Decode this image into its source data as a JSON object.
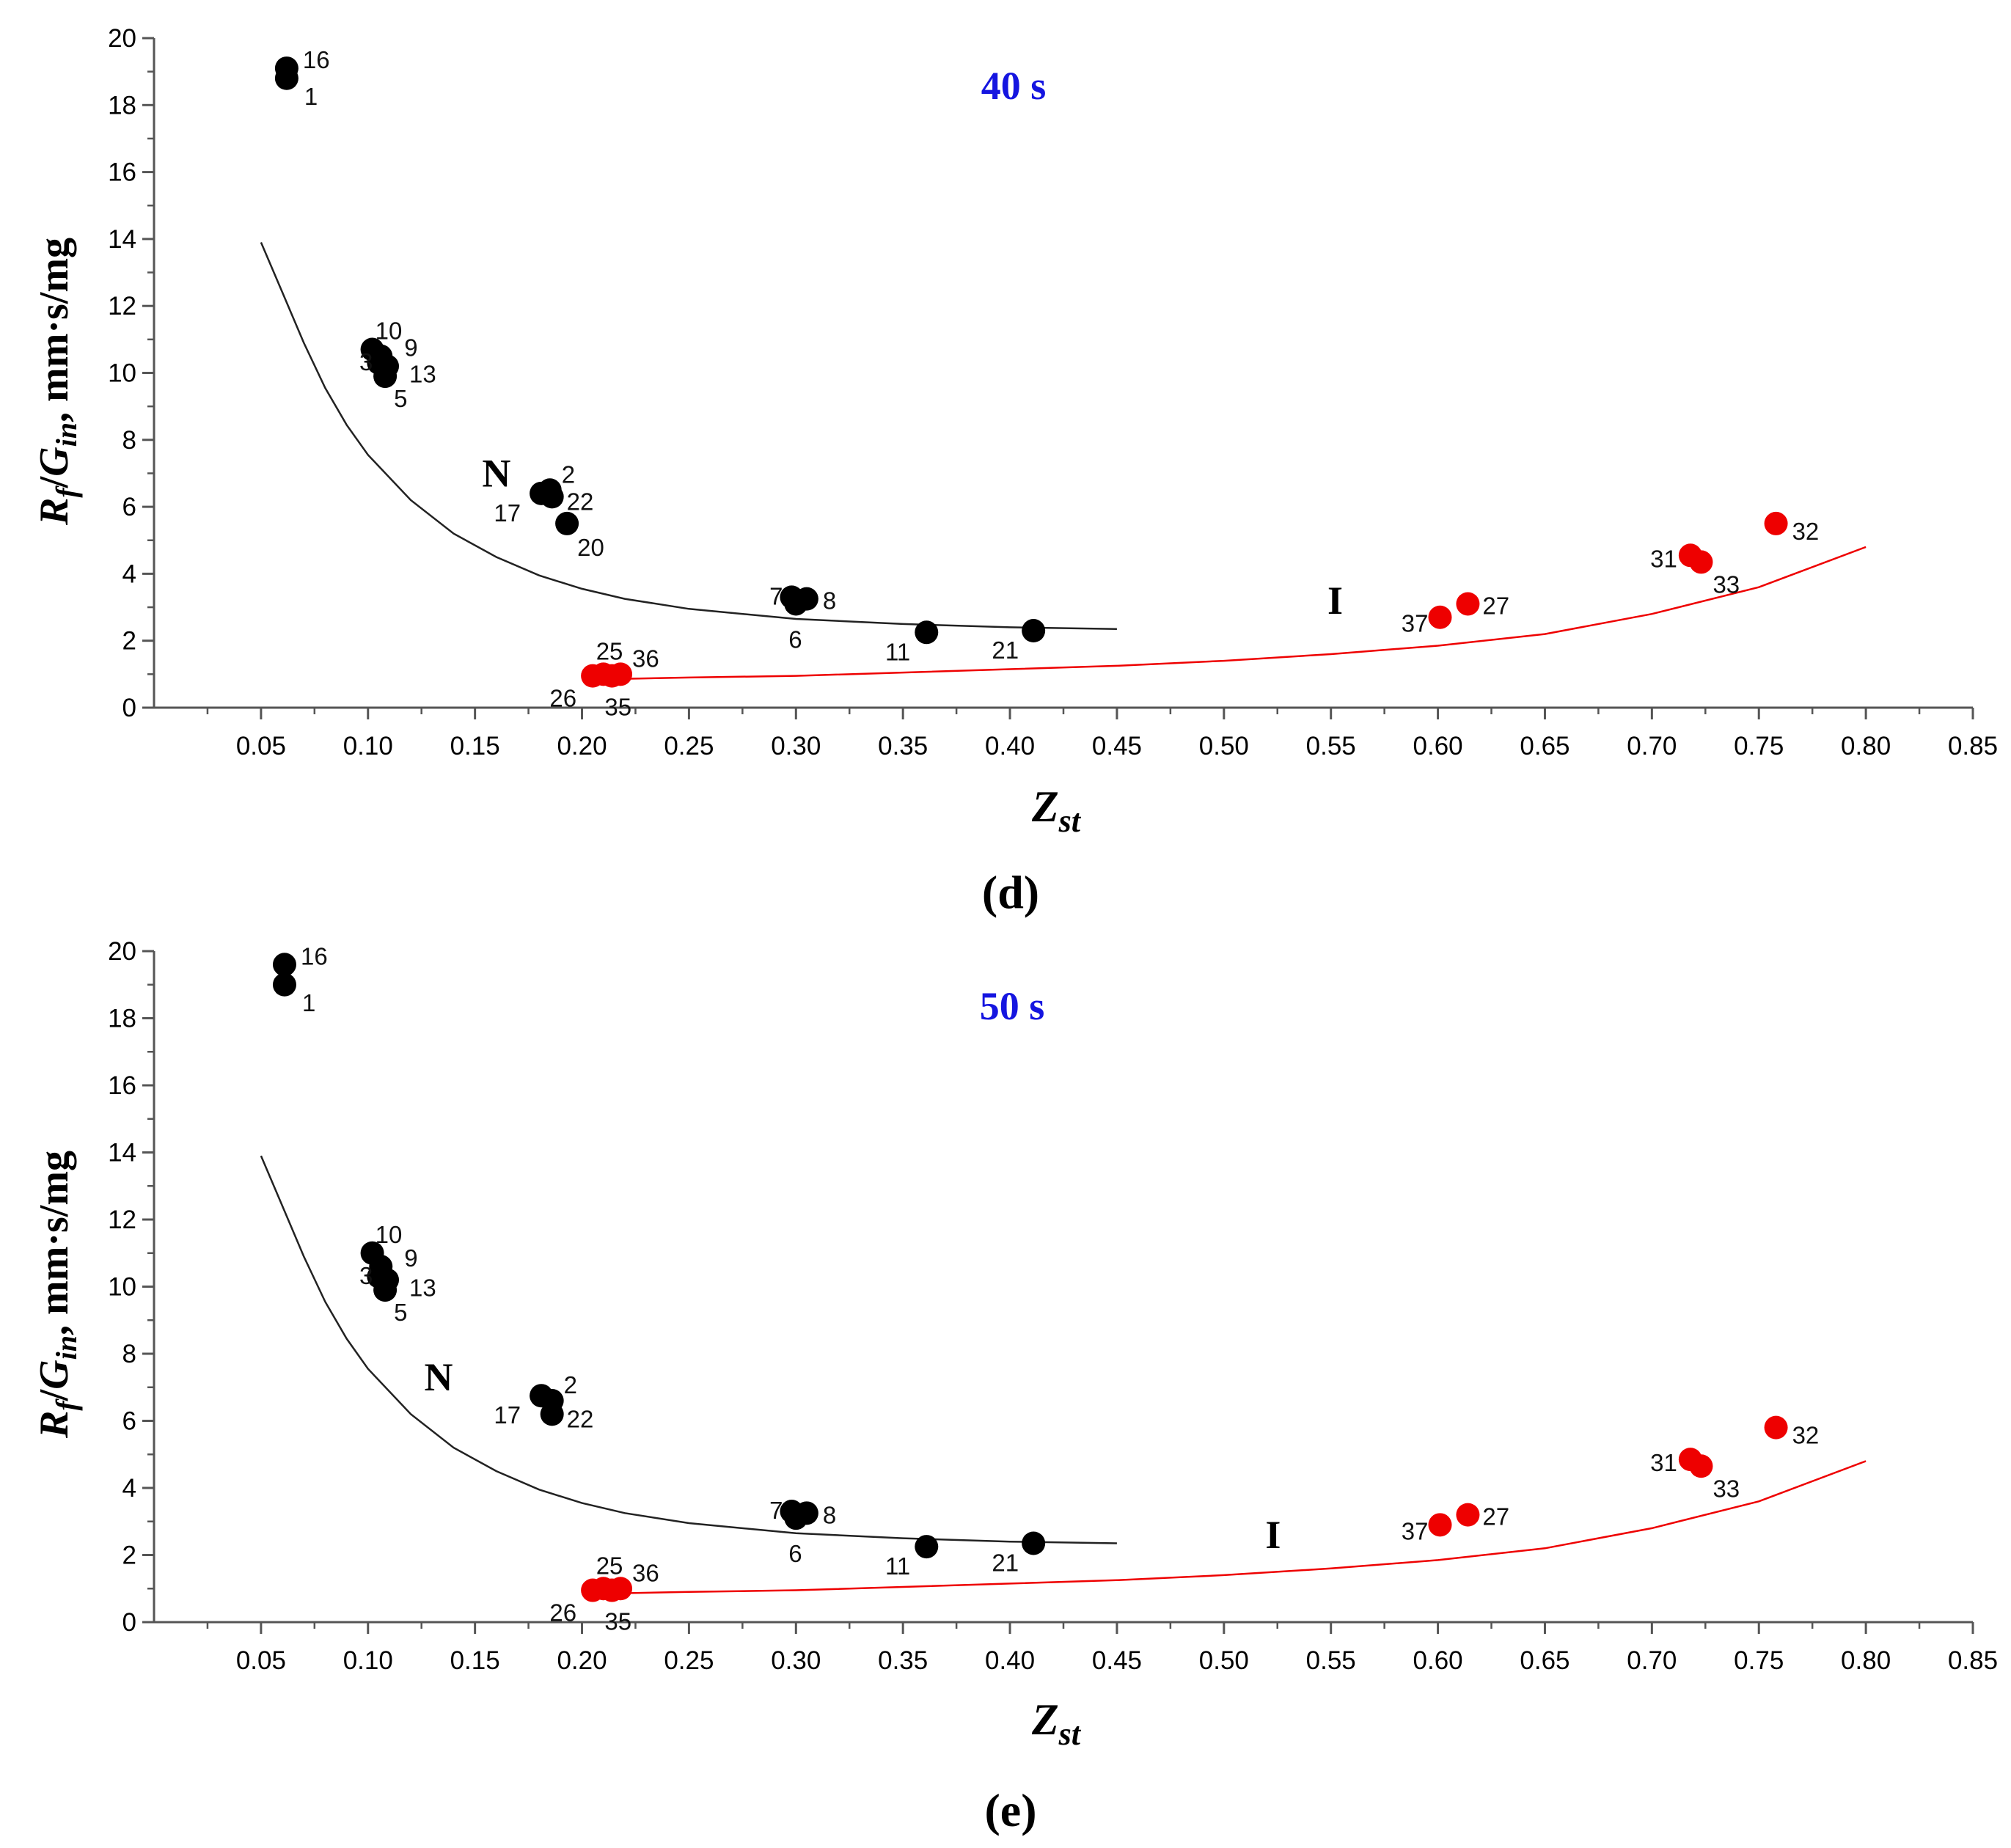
{
  "chart_data": [
    {
      "type": "scatter",
      "panel_label": "(d)",
      "time_label": "40 s",
      "xlabel_main": "Z",
      "xlabel_sub": "st",
      "ylabel_sym": "R",
      "ylabel_sym_sub": "f",
      "ylabel_sym2": "G",
      "ylabel_sym2_sub": "in",
      "ylabel_unit": ", mm·s/mg",
      "xlim": [
        0,
        0.85
      ],
      "ylim": [
        0,
        20
      ],
      "x_ticks": [
        "0.05",
        "0.10",
        "0.15",
        "0.20",
        "0.25",
        "0.30",
        "0.35",
        "0.40",
        "0.45",
        "0.50",
        "0.55",
        "0.60",
        "0.65",
        "0.70",
        "0.75",
        "0.80",
        "0.85"
      ],
      "y_ticks": [
        "0",
        "2",
        "4",
        "6",
        "8",
        "10",
        "12",
        "14",
        "16",
        "18",
        "20"
      ],
      "regions": [
        {
          "label": "N",
          "x": 0.16,
          "y": 7.0
        },
        {
          "label": "I",
          "x": 0.552,
          "y": 3.2
        }
      ],
      "series": [
        {
          "color": "#000000",
          "points": [
            {
              "label": "16",
              "x": 0.062,
              "y": 19.1
            },
            {
              "label": "1",
              "x": 0.062,
              "y": 18.8
            },
            {
              "label": "10",
              "x": 0.102,
              "y": 10.7
            },
            {
              "label": "9",
              "x": 0.106,
              "y": 10.5
            },
            {
              "label": "3",
              "x": 0.105,
              "y": 10.3
            },
            {
              "label": "13",
              "x": 0.109,
              "y": 10.2
            },
            {
              "label": "5",
              "x": 0.108,
              "y": 9.9
            },
            {
              "label": "2",
              "x": 0.185,
              "y": 6.5
            },
            {
              "label": "22",
              "x": 0.186,
              "y": 6.3
            },
            {
              "label": "17",
              "x": 0.181,
              "y": 6.4
            },
            {
              "label": "20",
              "x": 0.193,
              "y": 5.5
            },
            {
              "label": "7",
              "x": 0.298,
              "y": 3.3
            },
            {
              "label": "8",
              "x": 0.305,
              "y": 3.25
            },
            {
              "label": "6",
              "x": 0.3,
              "y": 3.1
            },
            {
              "label": "11",
              "x": 0.361,
              "y": 2.25
            },
            {
              "label": "21",
              "x": 0.411,
              "y": 2.3
            }
          ]
        },
        {
          "color": "#ee0000",
          "points": [
            {
              "label": "25",
              "x": 0.21,
              "y": 1.0
            },
            {
              "label": "36",
              "x": 0.218,
              "y": 1.0
            },
            {
              "label": "26",
              "x": 0.205,
              "y": 0.95
            },
            {
              "label": "35",
              "x": 0.214,
              "y": 0.95
            },
            {
              "label": "37",
              "x": 0.601,
              "y": 2.7
            },
            {
              "label": "27",
              "x": 0.614,
              "y": 3.1
            },
            {
              "label": "31",
              "x": 0.718,
              "y": 4.55
            },
            {
              "label": "33",
              "x": 0.723,
              "y": 4.35
            },
            {
              "label": "32",
              "x": 0.758,
              "y": 5.5
            }
          ]
        }
      ],
      "trend_lines": [
        {
          "color": "#222222",
          "points": [
            [
              0.05,
              13.9
            ],
            [
              0.06,
              12.4
            ],
            [
              0.07,
              10.9
            ],
            [
              0.08,
              9.55
            ],
            [
              0.09,
              8.45
            ],
            [
              0.1,
              7.55
            ],
            [
              0.12,
              6.2
            ],
            [
              0.14,
              5.2
            ],
            [
              0.16,
              4.5
            ],
            [
              0.18,
              3.95
            ],
            [
              0.2,
              3.55
            ],
            [
              0.22,
              3.25
            ],
            [
              0.25,
              2.95
            ],
            [
              0.3,
              2.65
            ],
            [
              0.35,
              2.5
            ],
            [
              0.4,
              2.4
            ],
            [
              0.45,
              2.35
            ]
          ]
        },
        {
          "color": "#ee0000",
          "points": [
            [
              0.21,
              0.85
            ],
            [
              0.25,
              0.9
            ],
            [
              0.3,
              0.95
            ],
            [
              0.35,
              1.05
            ],
            [
              0.4,
              1.15
            ],
            [
              0.45,
              1.25
            ],
            [
              0.5,
              1.4
            ],
            [
              0.55,
              1.6
            ],
            [
              0.6,
              1.85
            ],
            [
              0.65,
              2.2
            ],
            [
              0.7,
              2.8
            ],
            [
              0.75,
              3.6
            ],
            [
              0.8,
              4.8
            ]
          ]
        }
      ]
    },
    {
      "type": "scatter",
      "panel_label": "(e)",
      "time_label": "50 s",
      "xlabel_main": "Z",
      "xlabel_sub": "st",
      "ylabel_sym": "R",
      "ylabel_sym_sub": "f",
      "ylabel_sym2": "G",
      "ylabel_sym2_sub": "in",
      "ylabel_unit": ", mm·s/mg",
      "xlim": [
        0,
        0.85
      ],
      "ylim": [
        0,
        20
      ],
      "x_ticks": [
        "0.05",
        "0.10",
        "0.15",
        "0.20",
        "0.25",
        "0.30",
        "0.35",
        "0.40",
        "0.45",
        "0.50",
        "0.55",
        "0.60",
        "0.65",
        "0.70",
        "0.75",
        "0.80",
        "0.85"
      ],
      "y_ticks": [
        "0",
        "2",
        "4",
        "6",
        "8",
        "10",
        "12",
        "14",
        "16",
        "18",
        "20"
      ],
      "regions": [
        {
          "label": "N",
          "x": 0.133,
          "y": 7.3
        },
        {
          "label": "I",
          "x": 0.523,
          "y": 2.6
        }
      ],
      "series": [
        {
          "color": "#000000",
          "points": [
            {
              "label": "16",
              "x": 0.061,
              "y": 19.6
            },
            {
              "label": "1",
              "x": 0.061,
              "y": 19.0
            },
            {
              "label": "10",
              "x": 0.102,
              "y": 11.0
            },
            {
              "label": "9",
              "x": 0.106,
              "y": 10.6
            },
            {
              "label": "3",
              "x": 0.105,
              "y": 10.3
            },
            {
              "label": "13",
              "x": 0.109,
              "y": 10.2
            },
            {
              "label": "5",
              "x": 0.108,
              "y": 9.9
            },
            {
              "label": "17",
              "x": 0.181,
              "y": 6.75
            },
            {
              "label": "2",
              "x": 0.186,
              "y": 6.6
            },
            {
              "label": "22",
              "x": 0.186,
              "y": 6.2
            },
            {
              "label": "7",
              "x": 0.298,
              "y": 3.3
            },
            {
              "label": "8",
              "x": 0.305,
              "y": 3.25
            },
            {
              "label": "6",
              "x": 0.3,
              "y": 3.1
            },
            {
              "label": "11",
              "x": 0.361,
              "y": 2.25
            },
            {
              "label": "21",
              "x": 0.411,
              "y": 2.35
            }
          ]
        },
        {
          "color": "#ee0000",
          "points": [
            {
              "label": "25",
              "x": 0.21,
              "y": 1.0
            },
            {
              "label": "36",
              "x": 0.218,
              "y": 1.0
            },
            {
              "label": "26",
              "x": 0.205,
              "y": 0.95
            },
            {
              "label": "35",
              "x": 0.214,
              "y": 0.95
            },
            {
              "label": "37",
              "x": 0.601,
              "y": 2.9
            },
            {
              "label": "27",
              "x": 0.614,
              "y": 3.2
            },
            {
              "label": "31",
              "x": 0.718,
              "y": 4.85
            },
            {
              "label": "33",
              "x": 0.723,
              "y": 4.65
            },
            {
              "label": "32",
              "x": 0.758,
              "y": 5.8
            }
          ]
        }
      ],
      "trend_lines": [
        {
          "color": "#222222",
          "points": [
            [
              0.05,
              13.9
            ],
            [
              0.06,
              12.4
            ],
            [
              0.07,
              10.9
            ],
            [
              0.08,
              9.55
            ],
            [
              0.09,
              8.45
            ],
            [
              0.1,
              7.55
            ],
            [
              0.12,
              6.2
            ],
            [
              0.14,
              5.2
            ],
            [
              0.16,
              4.5
            ],
            [
              0.18,
              3.95
            ],
            [
              0.2,
              3.55
            ],
            [
              0.22,
              3.25
            ],
            [
              0.25,
              2.95
            ],
            [
              0.3,
              2.65
            ],
            [
              0.35,
              2.5
            ],
            [
              0.4,
              2.4
            ],
            [
              0.45,
              2.35
            ]
          ]
        },
        {
          "color": "#ee0000",
          "points": [
            [
              0.21,
              0.85
            ],
            [
              0.25,
              0.9
            ],
            [
              0.3,
              0.95
            ],
            [
              0.35,
              1.05
            ],
            [
              0.4,
              1.15
            ],
            [
              0.45,
              1.25
            ],
            [
              0.5,
              1.4
            ],
            [
              0.55,
              1.6
            ],
            [
              0.6,
              1.85
            ],
            [
              0.65,
              2.2
            ],
            [
              0.7,
              2.8
            ],
            [
              0.75,
              3.6
            ],
            [
              0.8,
              4.8
            ]
          ]
        }
      ]
    }
  ]
}
